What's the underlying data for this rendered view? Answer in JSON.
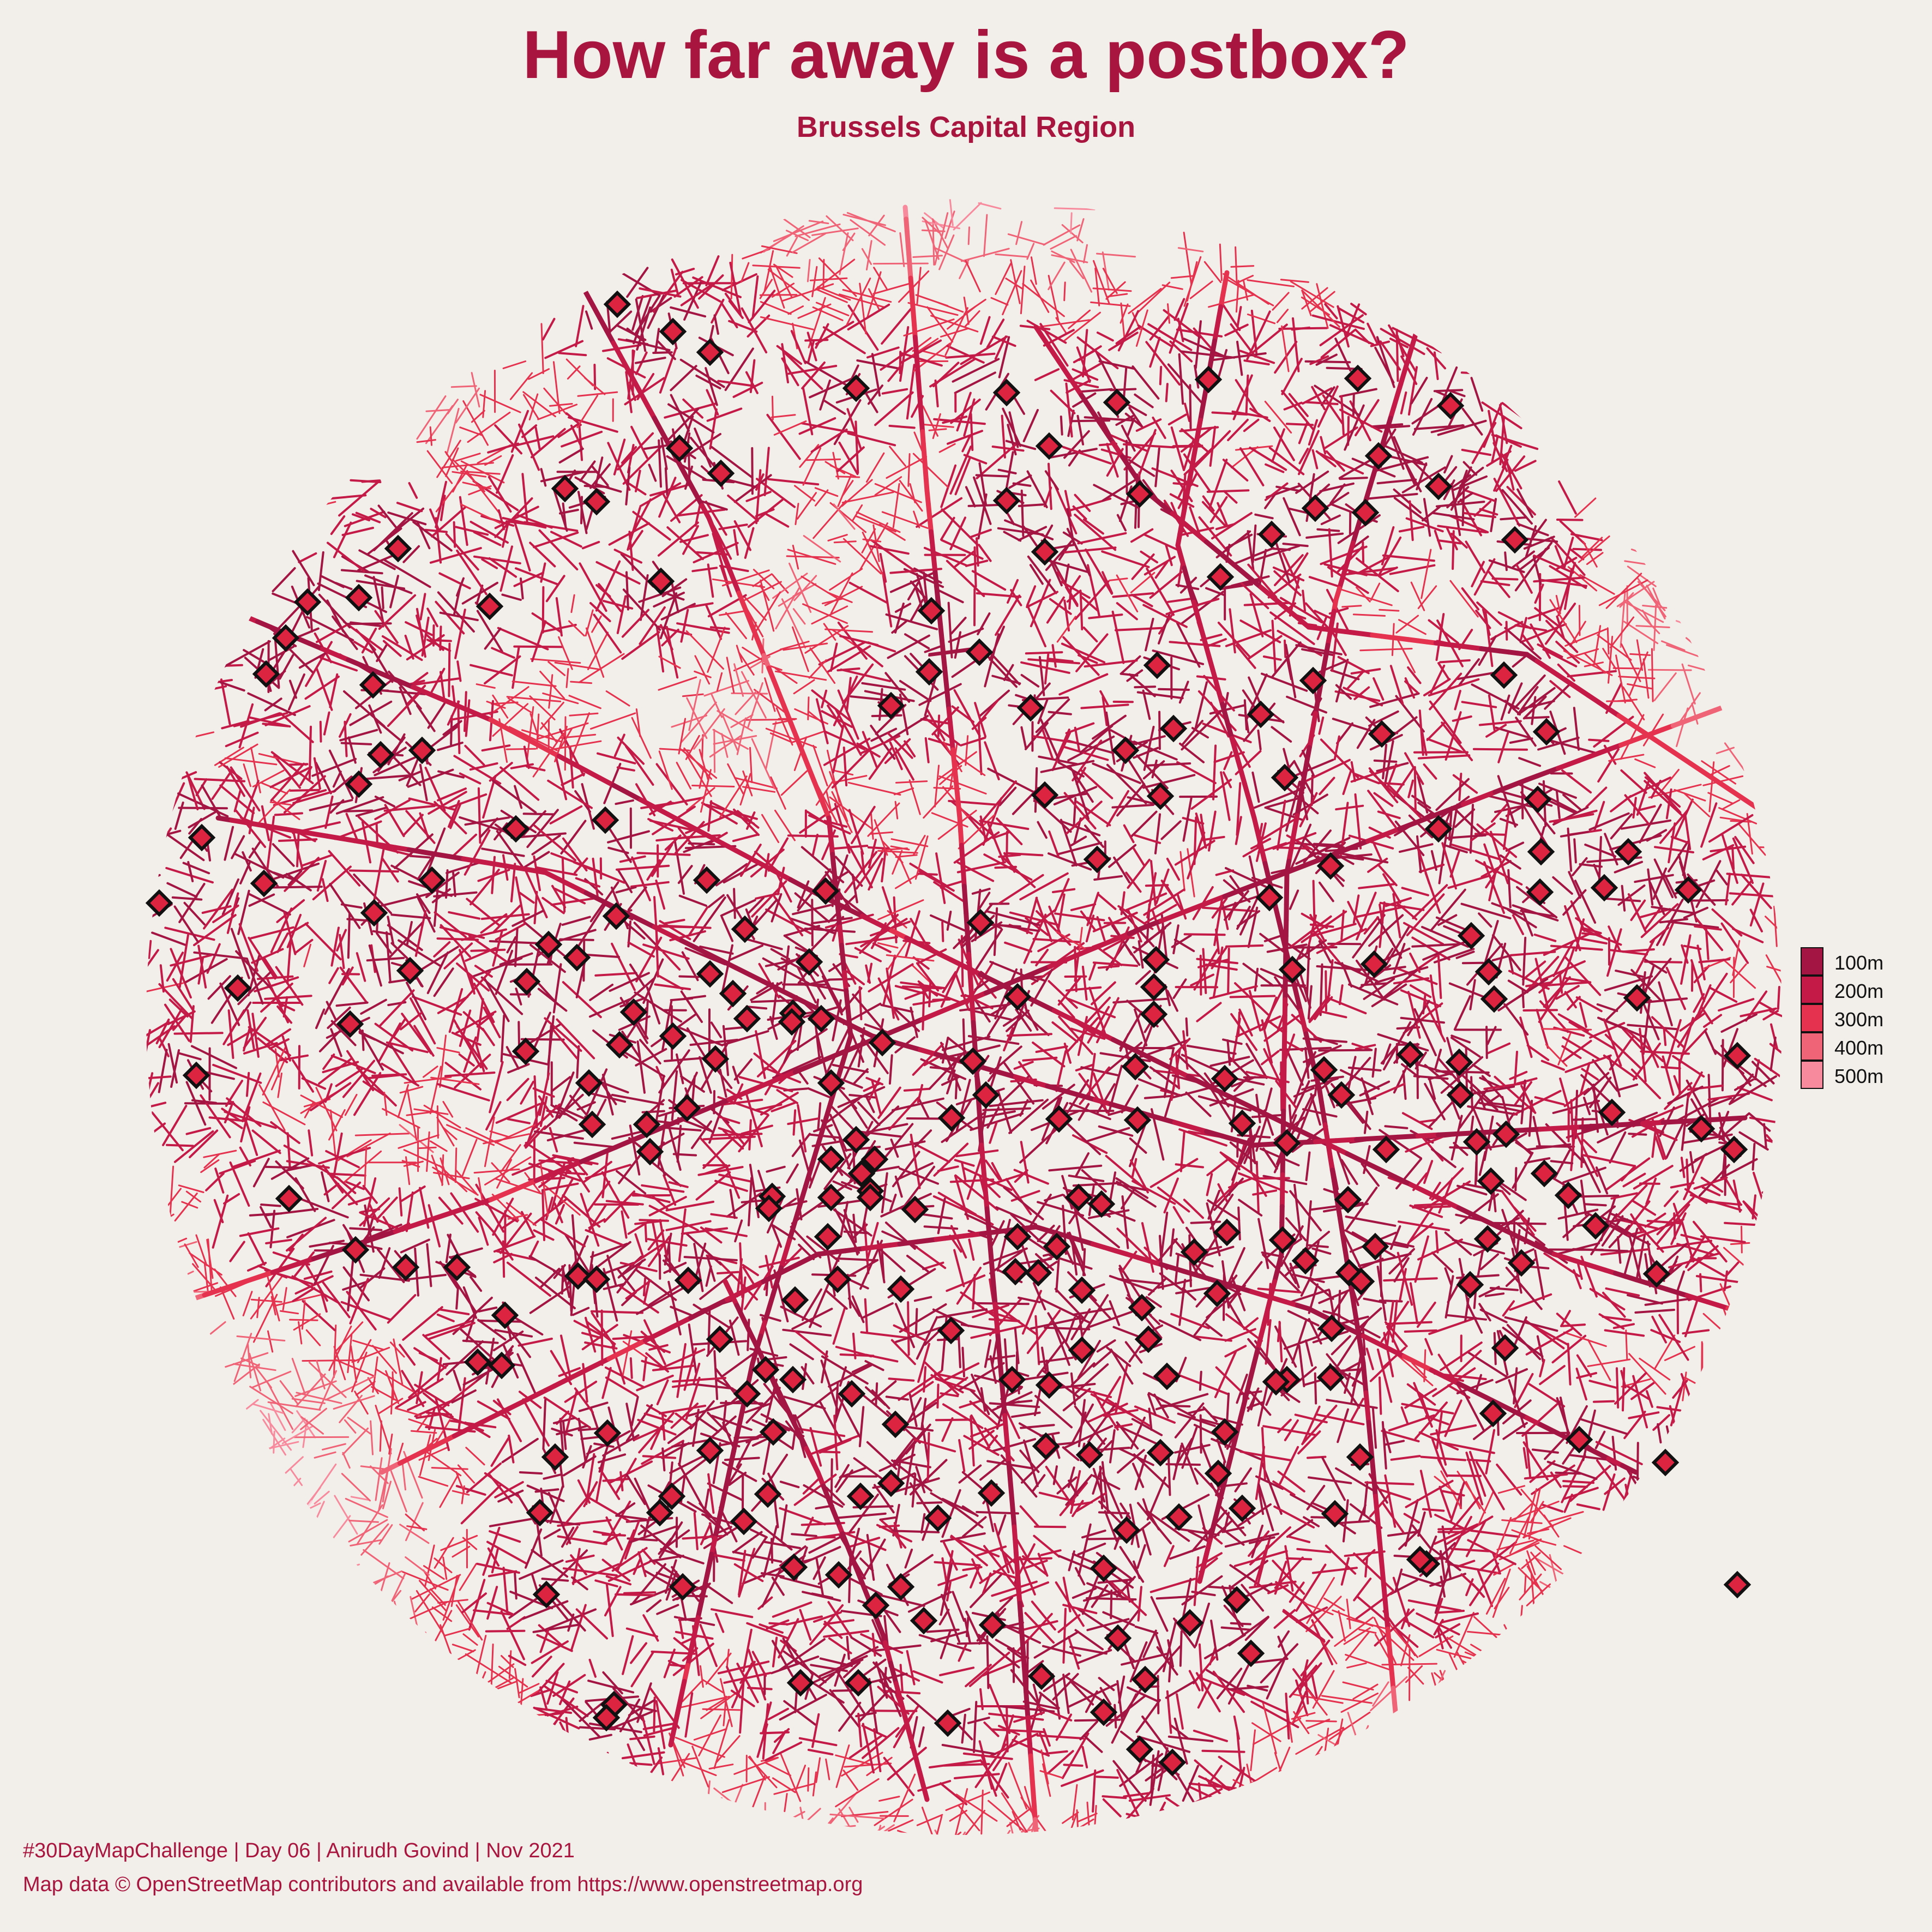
{
  "header": {
    "title": "How far away is a postbox?",
    "subtitle": "Brussels Capital Region"
  },
  "legend": {
    "items": [
      {
        "label": "100m",
        "color": "#a31543"
      },
      {
        "label": "200m",
        "color": "#c41a48"
      },
      {
        "label": "300m",
        "color": "#e5334f"
      },
      {
        "label": "400m",
        "color": "#f06478"
      },
      {
        "label": "500m",
        "color": "#f78b9d"
      }
    ]
  },
  "map": {
    "background_color": "#f2efea",
    "far_road_color": "#fbd2da",
    "marker": {
      "icon": "postbox-diamond-icon",
      "fill": "#dc2340",
      "stroke": "#111111"
    }
  },
  "footer": {
    "credit": "#30DayMapChallenge | Day 06 | Anirudh Govind | Nov 2021",
    "source": "Map data © OpenStreetMap contributors and available from https://www.openstreetmap.org"
  }
}
